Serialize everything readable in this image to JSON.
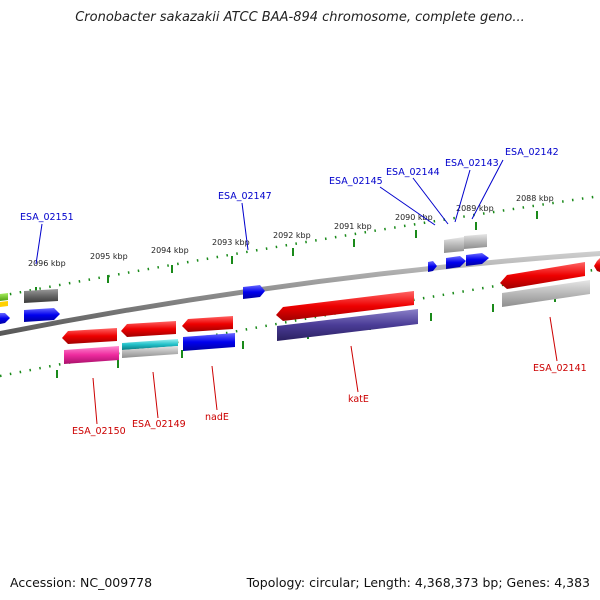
{
  "title": "Cronobacter sakazakii ATCC BAA-894 chromosome, complete geno...",
  "footer": {
    "accession": "Accession: NC_009778",
    "stats": "Topology: circular; Length: 4,368,373 bp; Genes: 4,383"
  },
  "colors": {
    "forward_label": "#0000cc",
    "reverse_label": "#cc0000",
    "tick": "#1a8a1a",
    "backbone": "#8c8c8c"
  },
  "scale_labels": [
    "2096 kbp",
    "2095 kbp",
    "2094 kbp",
    "2093 kbp",
    "2092 kbp",
    "2091 kbp",
    "2090 kbp",
    "2089 kbp",
    "2088 kbp"
  ],
  "forward_gene_labels": [
    "ESA_02151",
    "ESA_02147",
    "ESA_02145",
    "ESA_02144",
    "ESA_02143",
    "ESA_02142"
  ],
  "reverse_gene_labels": [
    "ESA_02150",
    "ESA_02149",
    "nadE",
    "katE",
    "ESA_02141"
  ]
}
